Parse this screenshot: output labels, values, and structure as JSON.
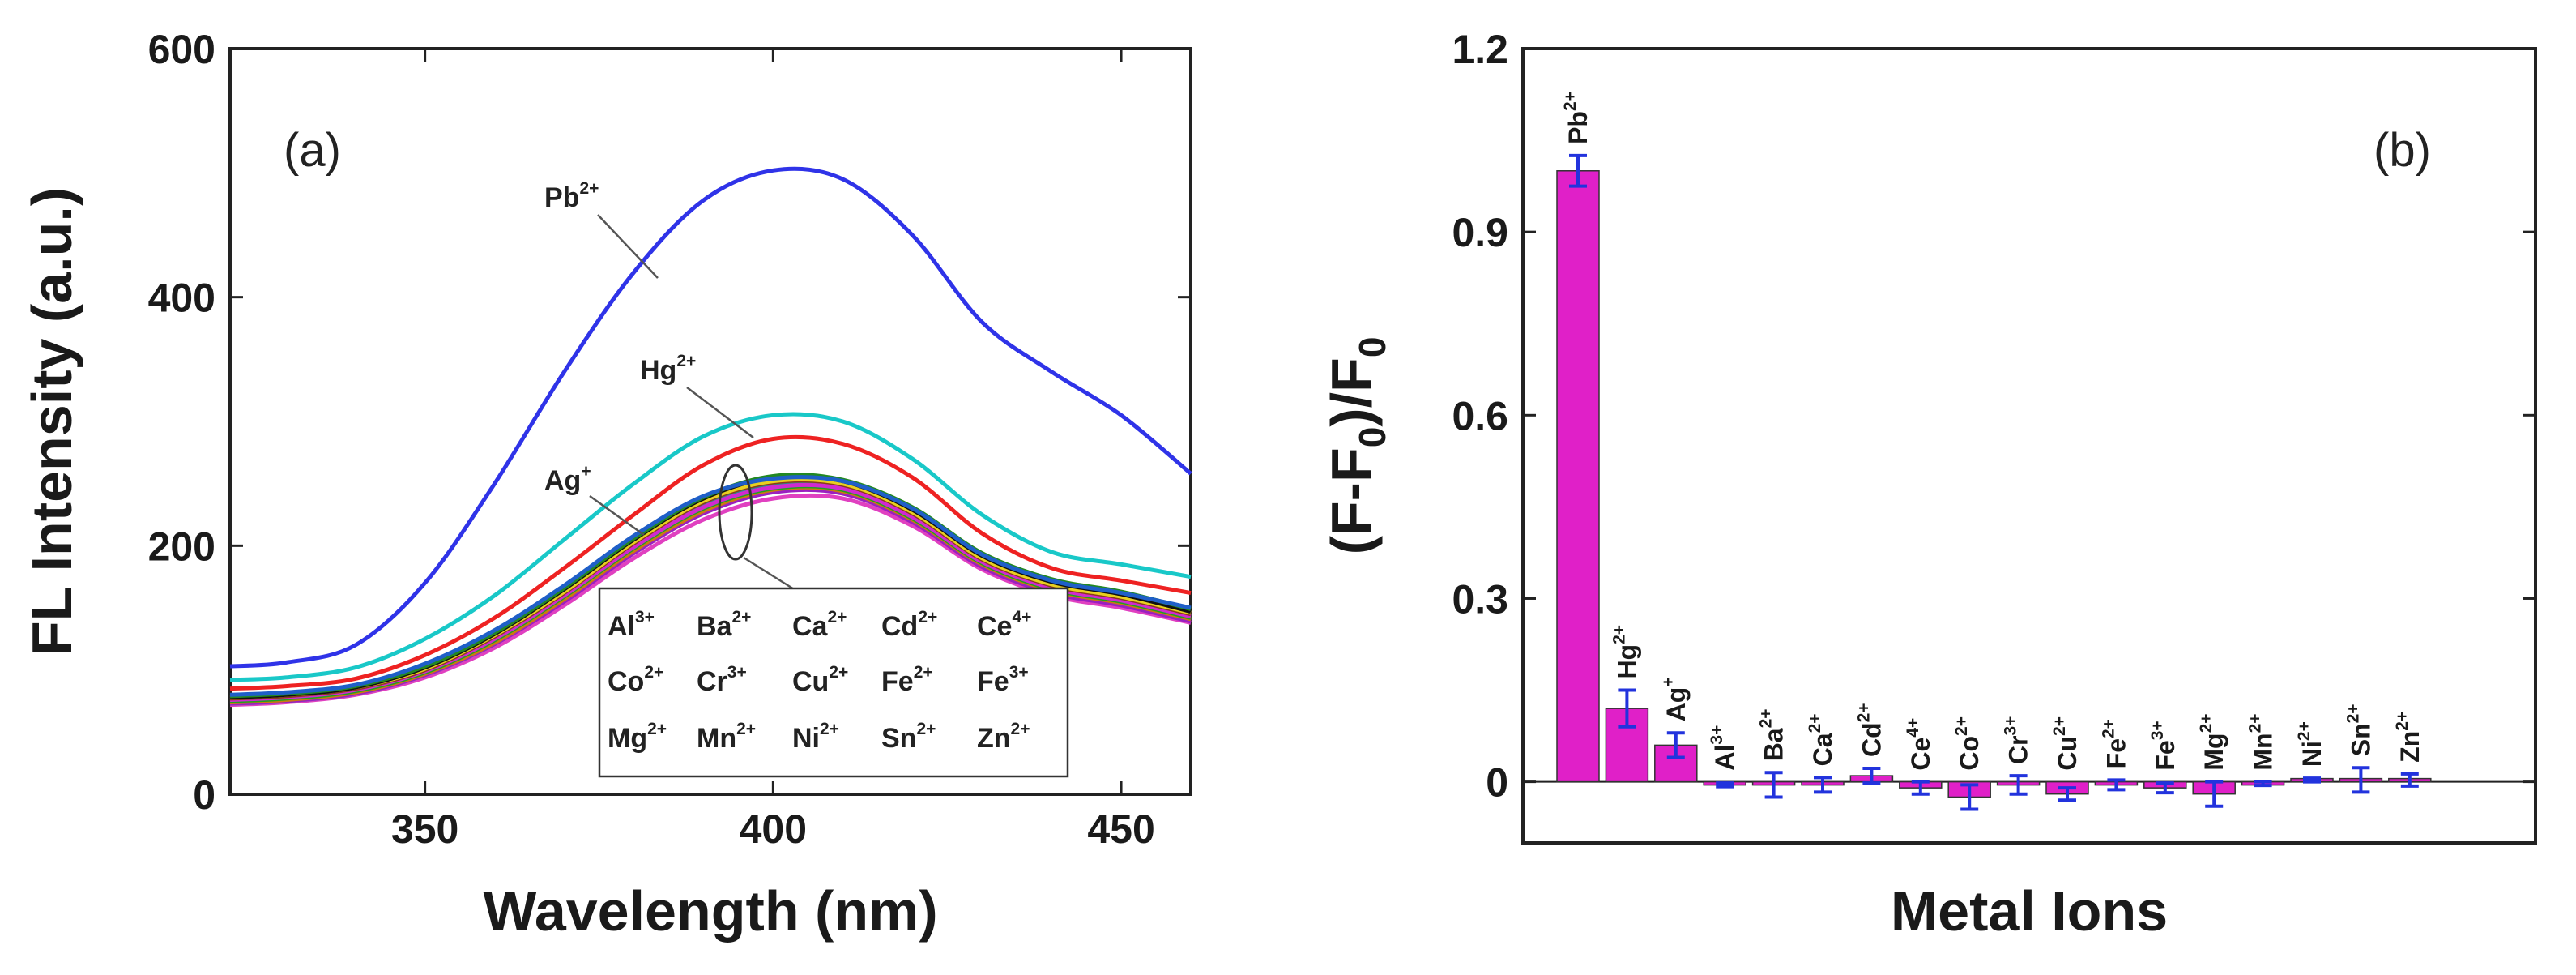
{
  "chart_data": [
    {
      "panel_label": "(a)",
      "type": "line",
      "xlabel": "Wavelength (nm)",
      "ylabel": "FL Intensity (a.u.)",
      "xlim": [
        322,
        460
      ],
      "ylim": [
        0,
        600
      ],
      "xticks": [
        350,
        400,
        450
      ],
      "yticks": [
        0,
        200,
        400,
        600
      ],
      "x": [
        322,
        330,
        340,
        350,
        360,
        370,
        380,
        390,
        400,
        410,
        420,
        430,
        440,
        450,
        460
      ],
      "series": [
        {
          "name": "Pb2+",
          "color": "#2f33e8",
          "values": [
            103,
            106,
            120,
            170,
            250,
            340,
            420,
            478,
            502,
            495,
            450,
            380,
            340,
            305,
            258
          ]
        },
        {
          "name": "Hg2+",
          "color": "#19c8c8",
          "values": [
            92,
            94,
            102,
            125,
            160,
            205,
            250,
            288,
            305,
            300,
            270,
            225,
            195,
            185,
            175
          ]
        },
        {
          "name": "Ag+",
          "color": "#ee2222",
          "values": [
            85,
            87,
            93,
            112,
            142,
            182,
            225,
            265,
            286,
            282,
            255,
            210,
            182,
            172,
            162
          ]
        },
        {
          "name": "Al3+",
          "color": "#1f5fc8",
          "values": [
            80,
            82,
            88,
            105,
            132,
            168,
            208,
            240,
            254,
            252,
            230,
            193,
            172,
            162,
            150
          ]
        },
        {
          "name": "Ba2+",
          "color": "#228822",
          "values": [
            79,
            81,
            87,
            103,
            130,
            166,
            206,
            239,
            256,
            253,
            231,
            194,
            173,
            163,
            149
          ]
        },
        {
          "name": "Ca2+",
          "color": "#101010",
          "values": [
            78,
            80,
            86,
            102,
            129,
            165,
            205,
            238,
            255,
            252,
            229,
            192,
            171,
            161,
            147
          ]
        },
        {
          "name": "Cd2+",
          "color": "#e8d020",
          "values": [
            78,
            80,
            86,
            101,
            128,
            163,
            203,
            236,
            252,
            250,
            227,
            190,
            169,
            159,
            146
          ]
        },
        {
          "name": "Ce4+",
          "color": "#8a3a1a",
          "values": [
            77,
            79,
            85,
            100,
            127,
            162,
            202,
            235,
            251,
            249,
            226,
            189,
            168,
            158,
            145
          ]
        },
        {
          "name": "Co2+",
          "color": "#d02ad0",
          "values": [
            76,
            78,
            84,
            99,
            125,
            160,
            199,
            231,
            247,
            246,
            223,
            187,
            166,
            156,
            143
          ]
        },
        {
          "name": "Cr3+",
          "color": "#2a8a8a",
          "values": [
            77,
            79,
            85,
            100,
            126,
            161,
            201,
            234,
            250,
            248,
            225,
            188,
            167,
            157,
            144
          ]
        },
        {
          "name": "Cu2+",
          "color": "#4a4ae0",
          "values": [
            78,
            80,
            86,
            101,
            128,
            164,
            204,
            237,
            253,
            251,
            228,
            191,
            170,
            160,
            146
          ]
        },
        {
          "name": "Fe2+",
          "color": "#20a020",
          "values": [
            75,
            77,
            83,
            98,
            124,
            159,
            198,
            230,
            246,
            245,
            222,
            186,
            165,
            155,
            142
          ]
        },
        {
          "name": "Fe3+",
          "color": "#cc7a10",
          "values": [
            74,
            76,
            82,
            97,
            122,
            157,
            196,
            228,
            245,
            244,
            221,
            185,
            164,
            154,
            141
          ]
        },
        {
          "name": "Mg2+",
          "color": "#9a20c0",
          "values": [
            73,
            75,
            81,
            96,
            121,
            155,
            194,
            226,
            243,
            242,
            219,
            183,
            162,
            152,
            139
          ]
        },
        {
          "name": "Mn2+",
          "color": "#707070",
          "values": [
            74,
            76,
            82,
            97,
            123,
            158,
            197,
            229,
            245,
            243,
            220,
            184,
            163,
            153,
            140
          ]
        },
        {
          "name": "Ni2+",
          "color": "#c01818",
          "values": [
            75,
            77,
            83,
            98,
            124,
            159,
            198,
            230,
            246,
            244,
            221,
            185,
            164,
            154,
            141
          ]
        },
        {
          "name": "Sn2+",
          "color": "#18b8b8",
          "values": [
            73,
            75,
            81,
            96,
            121,
            156,
            195,
            227,
            244,
            243,
            220,
            184,
            163,
            153,
            140
          ]
        },
        {
          "name": "Zn2+",
          "color": "#e040c0",
          "values": [
            72,
            74,
            80,
            94,
            118,
            152,
            190,
            221,
            238,
            238,
            216,
            181,
            160,
            150,
            138
          ]
        }
      ],
      "annotations": {
        "pb": {
          "base": "Pb",
          "sup": "2+"
        },
        "hg": {
          "base": "Hg",
          "sup": "2+"
        },
        "ag": {
          "base": "Ag",
          "sup": "+"
        }
      },
      "legend_box": [
        [
          {
            "base": "Al",
            "sup": "3+"
          },
          {
            "base": "Ba",
            "sup": "2+"
          },
          {
            "base": "Ca",
            "sup": "2+"
          },
          {
            "base": "Cd",
            "sup": "2+"
          },
          {
            "base": "Ce",
            "sup": "4+"
          }
        ],
        [
          {
            "base": "Co",
            "sup": "2+"
          },
          {
            "base": "Cr",
            "sup": "3+"
          },
          {
            "base": "Cu",
            "sup": "2+"
          },
          {
            "base": "Fe",
            "sup": "2+"
          },
          {
            "base": "Fe",
            "sup": "3+"
          }
        ],
        [
          {
            "base": "Mg",
            "sup": "2+"
          },
          {
            "base": "Mn",
            "sup": "2+"
          },
          {
            "base": "Ni",
            "sup": "2+"
          },
          {
            "base": "Sn",
            "sup": "2+"
          },
          {
            "base": "Zn",
            "sup": "2+"
          }
        ]
      ]
    },
    {
      "panel_label": "(b)",
      "type": "bar",
      "xlabel": "Metal Ions",
      "ylabel_parts": {
        "a": "(F-F",
        "sub1": "0",
        "b": ")/F",
        "sub2": "0"
      },
      "ylim": [
        -0.1,
        1.2
      ],
      "yticks": [
        "0",
        "0.3",
        "0.6",
        "0.9",
        "1.2"
      ],
      "ytick_values": [
        0,
        0.3,
        0.6,
        0.9,
        1.2
      ],
      "bar_color": "#e020c8",
      "errorbar_color": "#2233dd",
      "categories": [
        {
          "base": "Pb",
          "sup": "2+"
        },
        {
          "base": "Hg",
          "sup": "2+"
        },
        {
          "base": "Ag",
          "sup": "+"
        },
        {
          "base": "Al",
          "sup": "3+"
        },
        {
          "base": "Ba",
          "sup": "2+"
        },
        {
          "base": "Ca",
          "sup": "2+"
        },
        {
          "base": "Cd",
          "sup": "2+"
        },
        {
          "base": "Ce",
          "sup": "4+"
        },
        {
          "base": "Co",
          "sup": "2+"
        },
        {
          "base": "Cr",
          "sup": "3+"
        },
        {
          "base": "Cu",
          "sup": "2+"
        },
        {
          "base": "Fe",
          "sup": "2+"
        },
        {
          "base": "Fe",
          "sup": "3+"
        },
        {
          "base": "Mg",
          "sup": "2+"
        },
        {
          "base": "Mn",
          "sup": "2+"
        },
        {
          "base": "Ni",
          "sup": "2+"
        },
        {
          "base": "Sn",
          "sup": "2+"
        },
        {
          "base": "Zn",
          "sup": "2+"
        }
      ],
      "values": [
        1.0,
        0.12,
        0.06,
        -0.005,
        -0.005,
        -0.005,
        0.01,
        -0.01,
        -0.025,
        -0.005,
        -0.02,
        -0.005,
        -0.01,
        -0.02,
        -0.003,
        0.003,
        0.003,
        0.003
      ],
      "errors": [
        0.025,
        0.03,
        0.02,
        0.003,
        0.02,
        0.012,
        0.012,
        0.01,
        0.02,
        0.015,
        0.01,
        0.008,
        0.008,
        0.02,
        0.003,
        0.003,
        0.02,
        0.01
      ]
    }
  ]
}
